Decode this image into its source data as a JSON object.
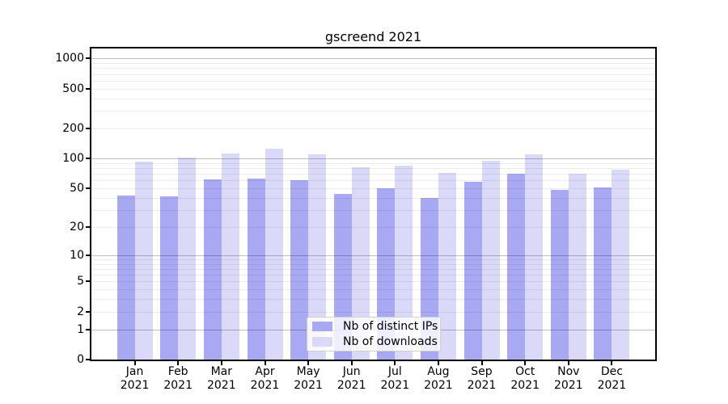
{
  "figure": {
    "title": "gscreend 2021",
    "background": "#ffffff"
  },
  "chart_data": {
    "type": "bar",
    "title": "gscreend 2021",
    "categories": [
      "Jan",
      "Feb",
      "Mar",
      "Apr",
      "May",
      "Jun",
      "Jul",
      "Aug",
      "Sep",
      "Oct",
      "Nov",
      "Dec"
    ],
    "category_year": "2021",
    "series": [
      {
        "name": "Nb of distinct IPs",
        "color": "#a9a9f3",
        "values": [
          42,
          41,
          61,
          63,
          60,
          44,
          50,
          40,
          58,
          70,
          48,
          51
        ]
      },
      {
        "name": "Nb of downloads",
        "color": "#dadaf8",
        "values": [
          93,
          102,
          112,
          125,
          110,
          81,
          85,
          71,
          95,
          110,
          70,
          77
        ]
      }
    ],
    "xlabel": "",
    "ylabel": "",
    "yscale": "log1p",
    "ylim": [
      0,
      1258
    ],
    "ytick_labels": [
      0,
      1,
      2,
      5,
      10,
      20,
      50,
      100,
      200,
      500,
      1000
    ],
    "grid": {
      "major_values": [
        1,
        10,
        100,
        1000
      ],
      "minor_multiples": [
        2,
        3,
        4,
        5,
        6,
        7,
        8,
        9
      ],
      "grid_over_bars": true
    },
    "legend": {
      "position": "lower center",
      "items": [
        "Nb of distinct IPs",
        "Nb of downloads"
      ]
    }
  },
  "colors": {
    "major_grid": "rgba(0,0,0,0.25)",
    "minor_grid": "rgba(0,0,0,0.075)",
    "spine": "#000000",
    "text": "#000000",
    "legend_border": "#d0d0d0",
    "legend_background": "rgba(255,255,255,0.8)"
  }
}
